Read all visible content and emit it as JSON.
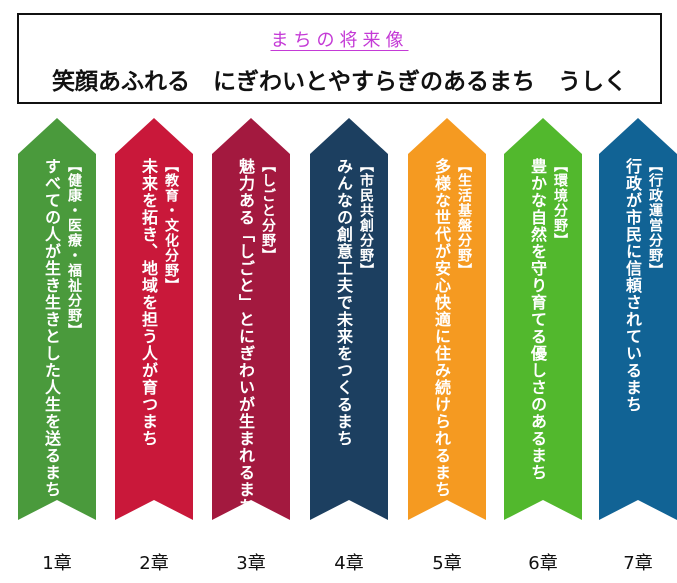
{
  "vision": {
    "label": "まちの将来像",
    "text": "笑顔あふれる　にぎわいとやすらぎのあるまち　うしく"
  },
  "pillars": [
    {
      "title": "すべての人が生き生きとした人生を送るまち",
      "field": "【健康・医療・福祉分野】",
      "chapter": "1章",
      "color": "#4a9a3c"
    },
    {
      "title": "未来を拓き、地域を担う人が育つまち",
      "field": "【教育・文化分野】",
      "chapter": "2章",
      "color": "#c9183a"
    },
    {
      "title": "魅力ある「しごと」とにぎわいが生まれるまち",
      "field": "【しごと分野】",
      "chapter": "3章",
      "color": "#a3193f"
    },
    {
      "title": "みんなの創意工夫で未来をつくるまち",
      "field": "【市民共創分野】",
      "chapter": "4章",
      "color": "#1c3f60"
    },
    {
      "title": "多様な世代が安心快適に住み続けられるまち",
      "field": "【生活基盤分野】",
      "chapter": "5章",
      "color": "#f59a21"
    },
    {
      "title": "豊かな自然を守り育てる優しさのあるまち",
      "field": "【環境分野】",
      "chapter": "6章",
      "color": "#52b82d"
    },
    {
      "title": "行政が市民に信頼されているまち",
      "field": "【行政運営分野】",
      "chapter": "7章",
      "color": "#116395"
    }
  ]
}
